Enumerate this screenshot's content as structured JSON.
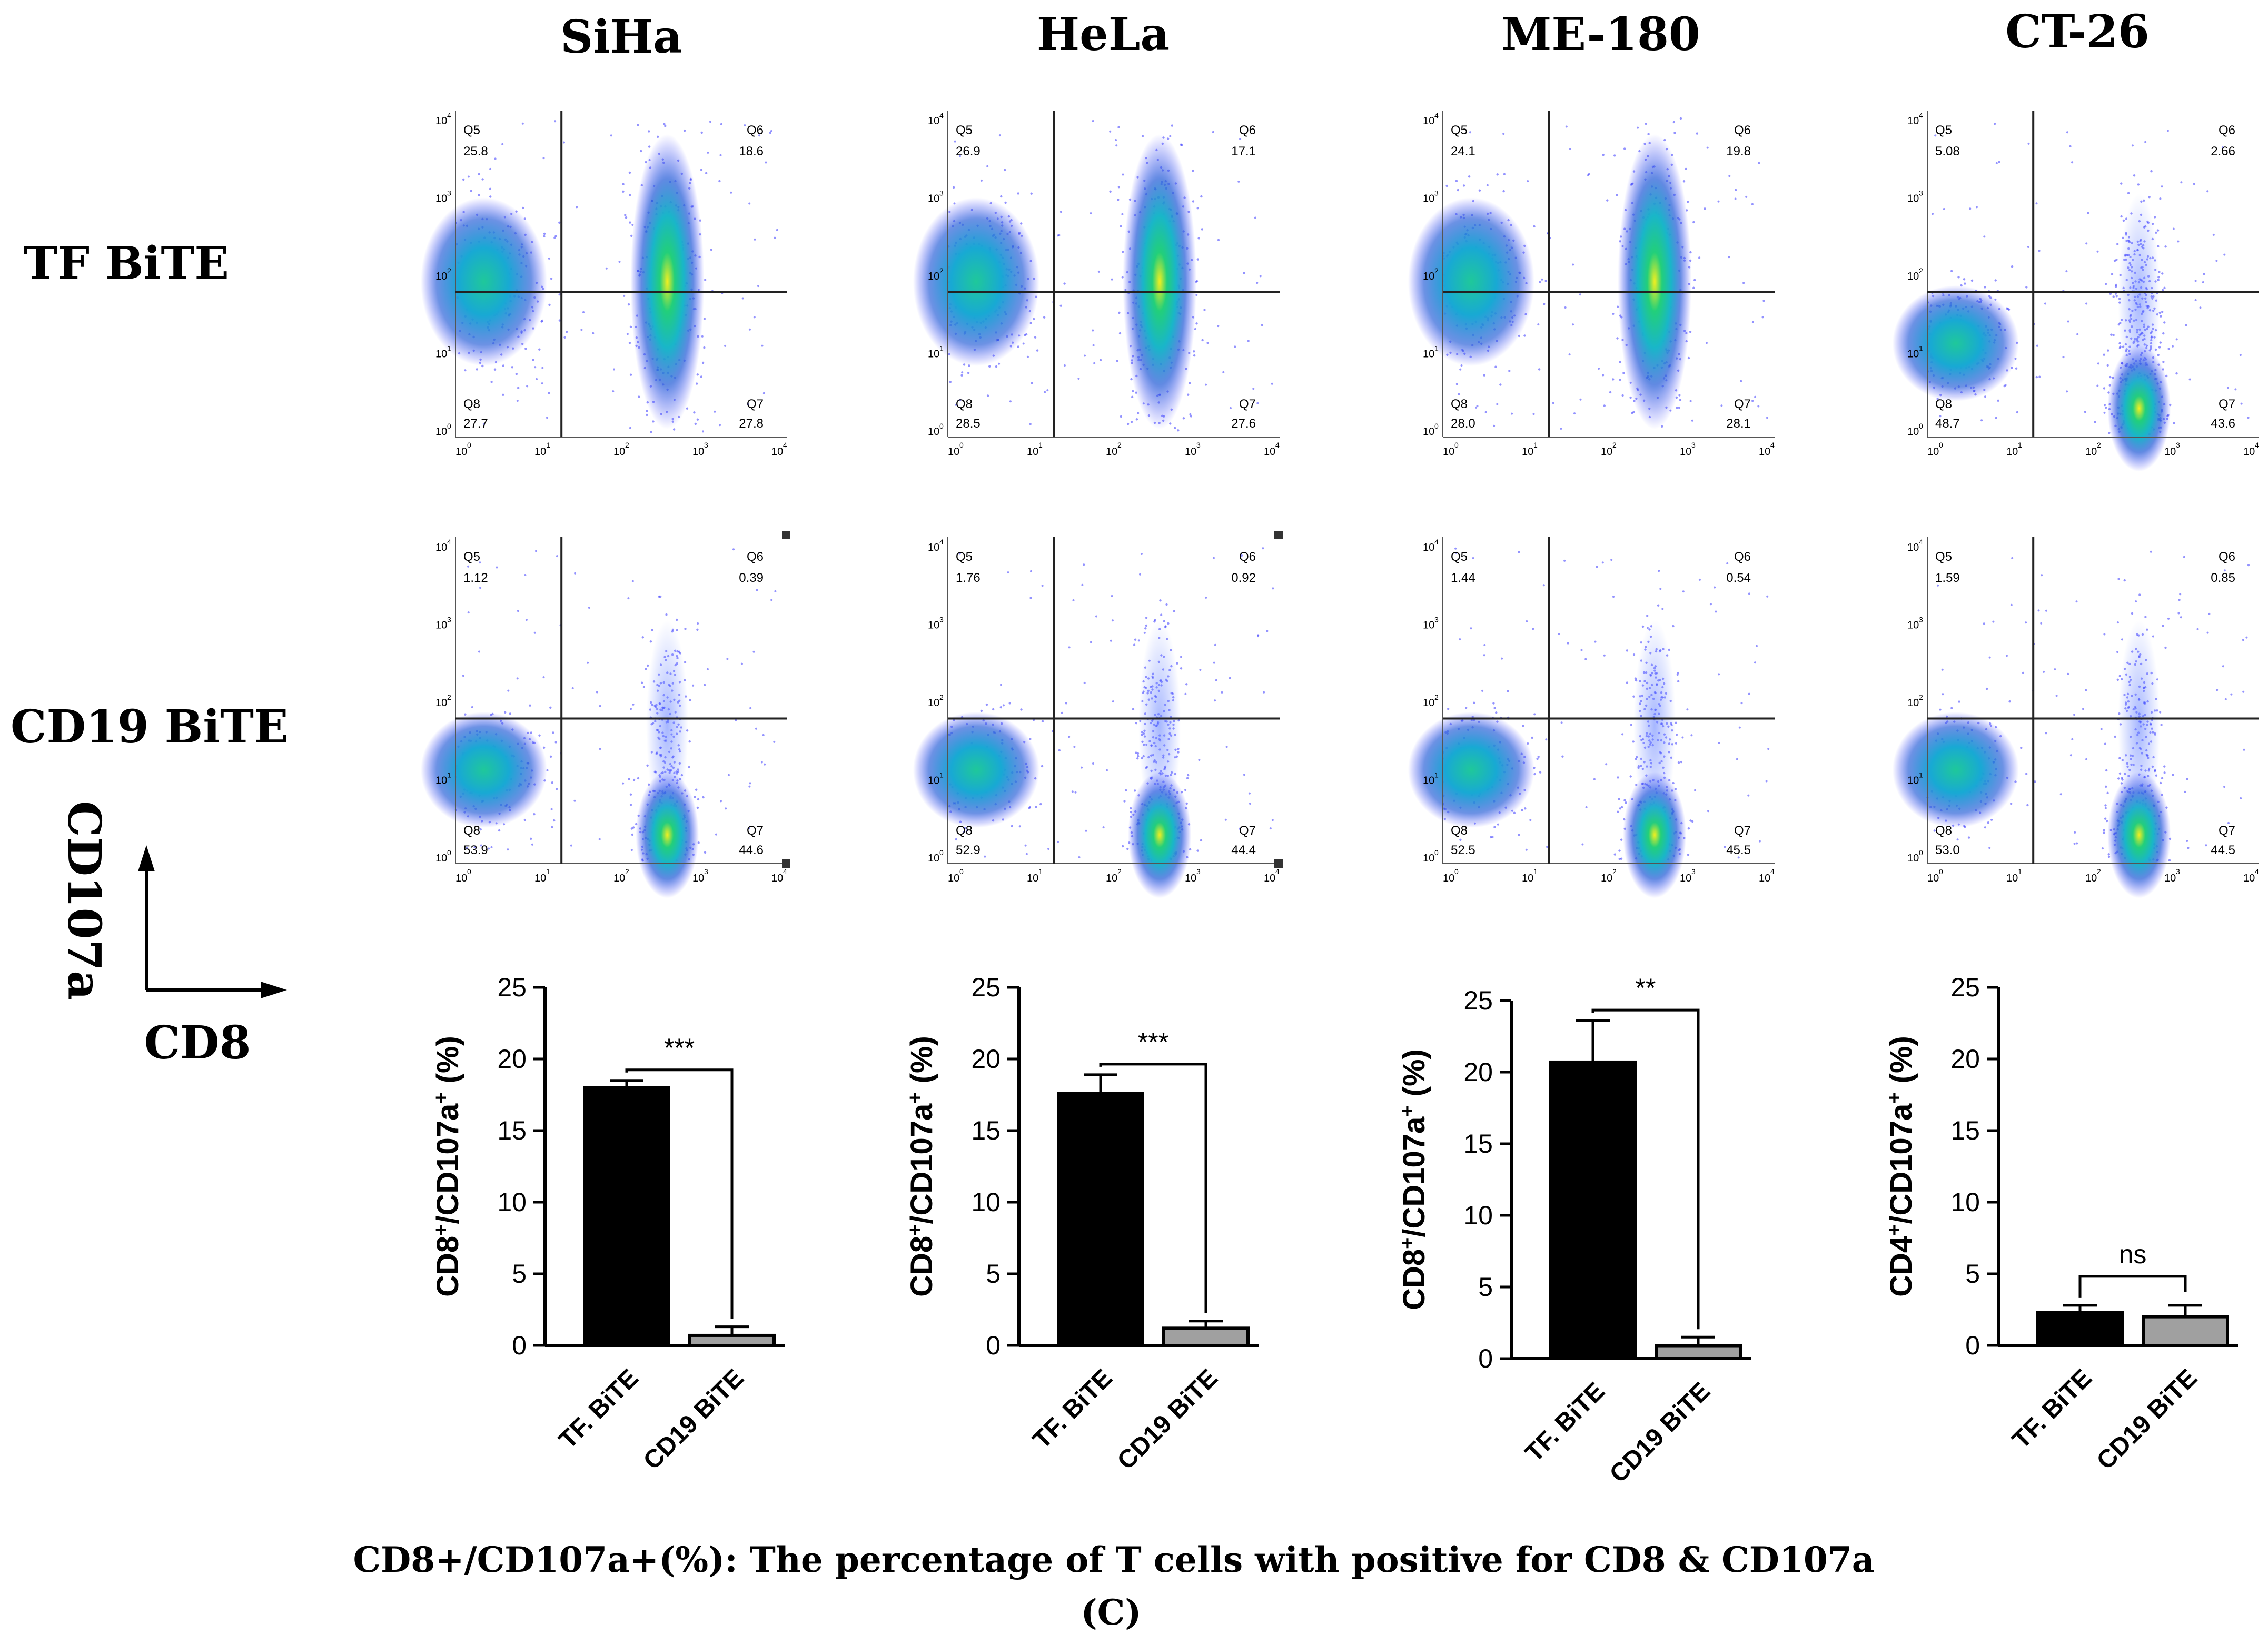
{
  "columns": [
    "SiHa",
    "HeLa",
    "ME-180",
    "CT-26"
  ],
  "rows": [
    "TF BiTE",
    "CD19 BiTE"
  ],
  "axis_indicator": {
    "y": "CD107a",
    "x": "CD8"
  },
  "caption": "CD8+/CD107a+(%): The percentage of T cells with positive for CD8 & CD107a",
  "panel_label": "(C)",
  "flow_plots": {
    "tick_labels": [
      "10",
      "10",
      "10",
      "10",
      "10"
    ],
    "tick_exponents": [
      "0",
      "1",
      "2",
      "3",
      "4"
    ],
    "quadrant_names": [
      "Q5",
      "Q6",
      "Q7",
      "Q8"
    ],
    "tf": [
      {
        "q5": "25.8",
        "q6": "18.6",
        "q7": "27.8",
        "q8": "27.7"
      },
      {
        "q5": "26.9",
        "q6": "17.1",
        "q7": "27.6",
        "q8": "28.5"
      },
      {
        "q5": "24.1",
        "q6": "19.8",
        "q7": "28.1",
        "q8": "28.0"
      },
      {
        "q5": "5.08",
        "q6": "2.66",
        "q7": "43.6",
        "q8": "48.7"
      }
    ],
    "cd19": [
      {
        "q5": "1.12",
        "q6": "0.39",
        "q7": "44.6",
        "q8": "53.9"
      },
      {
        "q5": "1.76",
        "q6": "0.92",
        "q7": "44.4",
        "q8": "52.9"
      },
      {
        "q5": "1.44",
        "q6": "0.54",
        "q7": "45.5",
        "q8": "52.5"
      },
      {
        "q5": "1.59",
        "q6": "0.85",
        "q7": "44.5",
        "q8": "53.0"
      }
    ]
  },
  "chart_data": [
    {
      "type": "bar",
      "title": "SiHa",
      "categories": [
        "TF. BiTE",
        "CD19 BiTE"
      ],
      "values": [
        18.0,
        0.7
      ],
      "errors": [
        0.5,
        0.6
      ],
      "colors": [
        "#000000",
        "#a0a0a0"
      ],
      "ylabel": "CD8+/CD107a+ (%)",
      "ylim": [
        0,
        25
      ],
      "yticks": [
        "0",
        "5",
        "10",
        "15",
        "20",
        "25"
      ],
      "significance": "***"
    },
    {
      "type": "bar",
      "title": "HeLa",
      "categories": [
        "TF. BiTE",
        "CD19 BiTE"
      ],
      "values": [
        17.6,
        1.2
      ],
      "errors": [
        1.3,
        0.5
      ],
      "colors": [
        "#000000",
        "#a0a0a0"
      ],
      "ylabel": "CD8+/CD107a+ (%)",
      "ylim": [
        0,
        25
      ],
      "yticks": [
        "0",
        "5",
        "10",
        "15",
        "20",
        "25"
      ],
      "significance": "***"
    },
    {
      "type": "bar",
      "title": "ME-180",
      "categories": [
        "TF. BiTE",
        "CD19 BiTE"
      ],
      "values": [
        20.7,
        0.9
      ],
      "errors": [
        2.9,
        0.6
      ],
      "colors": [
        "#000000",
        "#a0a0a0"
      ],
      "ylabel": "CD8+/CD107a+ (%)",
      "ylim": [
        0,
        25
      ],
      "yticks": [
        "0",
        "5",
        "10",
        "15",
        "20",
        "25"
      ],
      "significance": "**"
    },
    {
      "type": "bar",
      "title": "CT-26",
      "categories": [
        "TF. BiTE",
        "CD19 BiTE"
      ],
      "values": [
        2.3,
        2.0
      ],
      "errors": [
        0.5,
        0.8
      ],
      "colors": [
        "#000000",
        "#a0a0a0"
      ],
      "ylabel": "CD4+/CD107a+ (%)",
      "ylim": [
        0,
        25
      ],
      "yticks": [
        "0",
        "5",
        "10",
        "15",
        "20",
        "25"
      ],
      "significance": "ns"
    }
  ]
}
